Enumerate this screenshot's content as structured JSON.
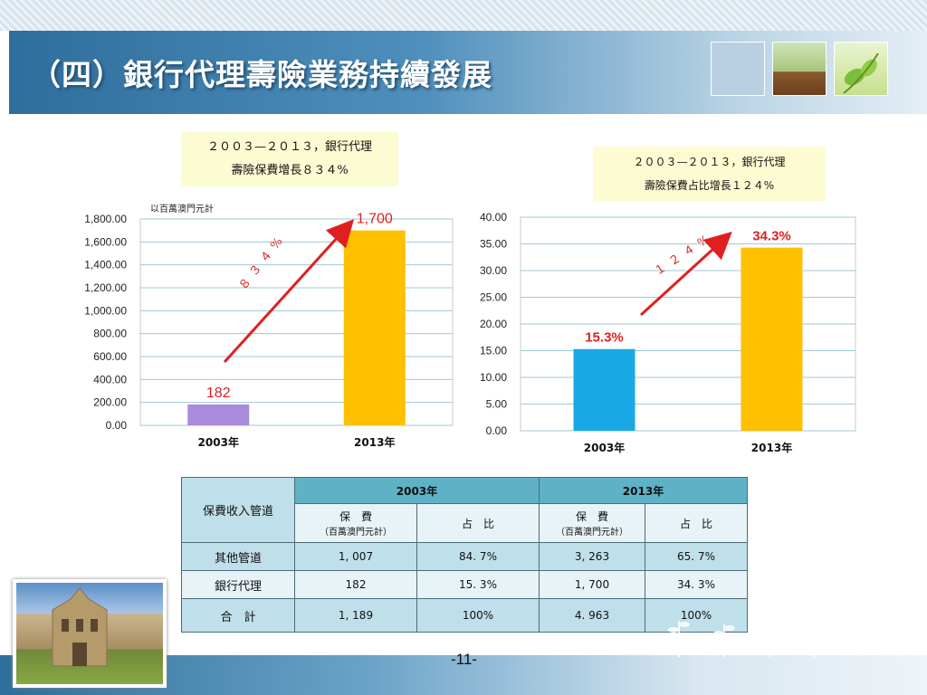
{
  "slide": {
    "title": "（四）銀行代理壽險業務持續發展",
    "page_number": "-11-"
  },
  "notes": {
    "left": {
      "line1": "２００３—２０１３，銀行代理",
      "line2": "壽險保費增長８３４%"
    },
    "right": {
      "line1": "２００３—２０１３，銀行代理",
      "line2": "壽險保費占比增長１２４%"
    }
  },
  "chart_data": [
    {
      "type": "bar",
      "unit_note": "以百萬澳門元計",
      "categories": [
        "2003年",
        "2013年"
      ],
      "values": [
        182,
        1700
      ],
      "data_labels": [
        "182",
        "1,700"
      ],
      "bar_colors": [
        "#a98bdb",
        "#ffc000"
      ],
      "ylim": [
        0,
        1800
      ],
      "yticks": [
        "0.00",
        "200.00",
        "400.00",
        "600.00",
        "800.00",
        "1,000.00",
        "1,200.00",
        "1,400.00",
        "1,600.00",
        "1,800.00"
      ],
      "grid": true,
      "annotation": "８３４%"
    },
    {
      "type": "bar",
      "categories": [
        "2003年",
        "2013年"
      ],
      "values": [
        15.3,
        34.3
      ],
      "data_labels": [
        "15.3%",
        "34.3%"
      ],
      "bar_colors": [
        "#1aa7e6",
        "#ffc000"
      ],
      "ylim": [
        0,
        40
      ],
      "yticks": [
        "0.00",
        "5.00",
        "10.00",
        "15.00",
        "20.00",
        "25.00",
        "30.00",
        "35.00",
        "40.00"
      ],
      "grid": true,
      "annotation": "１２４%"
    }
  ],
  "table": {
    "row_header": "保費收入管道",
    "years": [
      "2003年",
      "2013年"
    ],
    "sub_premium": "保　費",
    "sub_premium_unit": "（百萬澳門元計）",
    "sub_share": "占　比",
    "rows": [
      {
        "name": "其他管道",
        "cells": [
          "1, 007",
          "84. 7%",
          "3, 263",
          "65. 7%"
        ]
      },
      {
        "name": "銀行代理",
        "cells": [
          "182",
          "15. 3%",
          "1, 700",
          "34. 3%"
        ]
      },
      {
        "name": "合　計",
        "cells": [
          "1, 189",
          "100%",
          "4. 963",
          "100%"
        ]
      }
    ]
  },
  "colors": {
    "title_bar": "#2f6e9c",
    "arrow": "#e02020",
    "label_red": "#e02020"
  }
}
